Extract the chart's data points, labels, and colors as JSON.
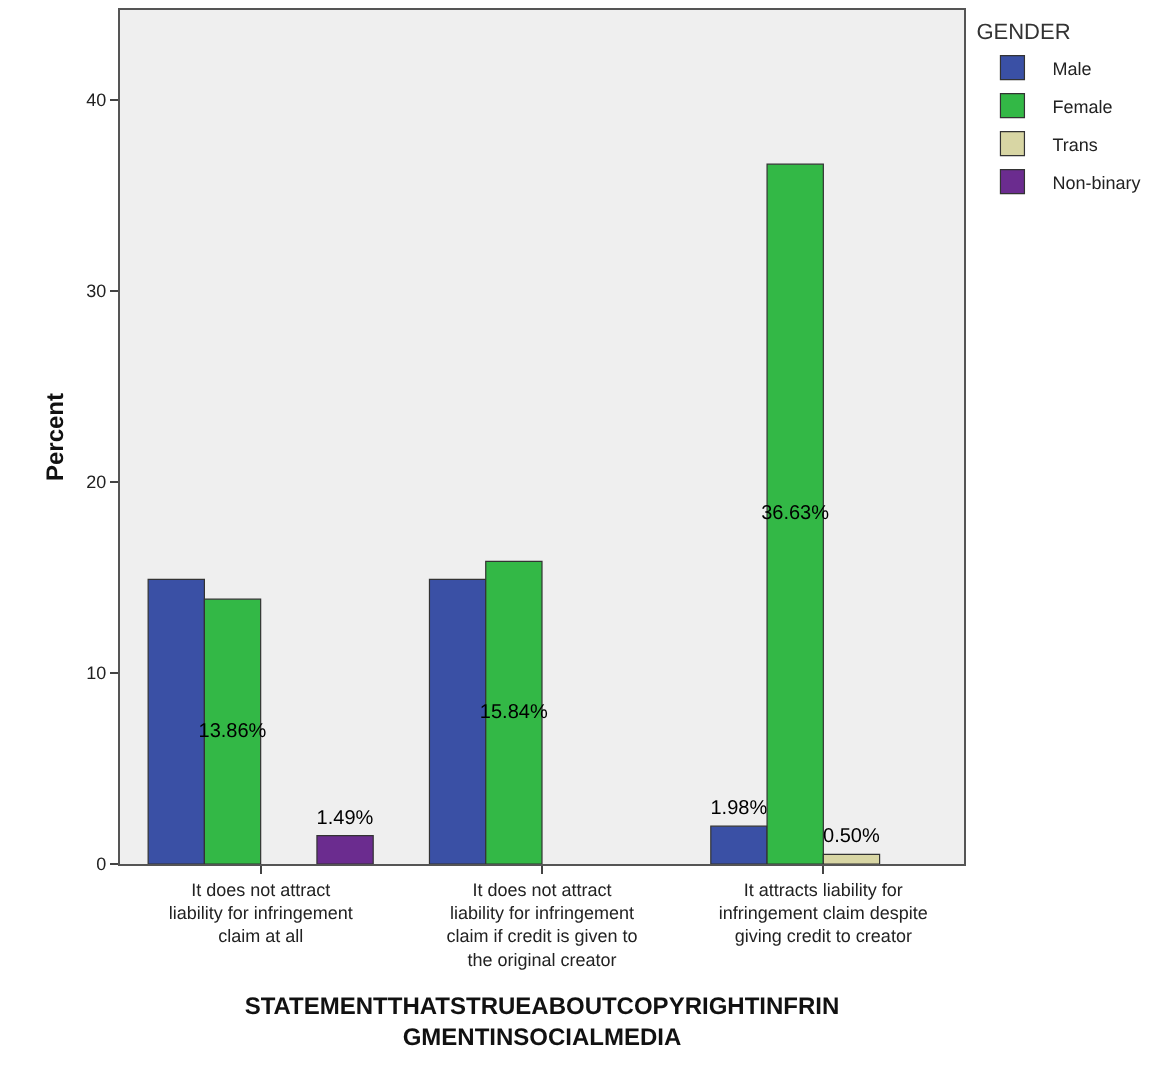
{
  "chart_data": {
    "type": "bar",
    "xlabel": "STATEMENTTHATSTRUEABOUTCOPYRIGHTINFRINGMENTINSOCIALMEDIA",
    "ylabel": "Percent",
    "legend_title": "GENDER",
    "categories": [
      "It does not attract liability for infringement claim at all",
      "It does not attract liability for infringement claim if credit is given to the original creator",
      "It attracts liability for infringement claim despite giving credit to creator"
    ],
    "series": [
      {
        "name": "Male",
        "color": "#3a50a5",
        "values": [
          14.9,
          14.9,
          1.98
        ],
        "value_labels": [
          null,
          null,
          "1.98%"
        ]
      },
      {
        "name": "Female",
        "color": "#33b846",
        "values": [
          13.86,
          15.84,
          36.63
        ],
        "value_labels": [
          "13.86%",
          "15.84%",
          "36.63%"
        ]
      },
      {
        "name": "Trans",
        "color": "#d8d6a4",
        "values": [
          null,
          null,
          0.5
        ],
        "value_labels": [
          null,
          null,
          "0.50%"
        ]
      },
      {
        "name": "Non-binary",
        "color": "#6b2c8f",
        "values": [
          1.49,
          null,
          null
        ],
        "value_labels": [
          "1.49%",
          null,
          null
        ]
      }
    ],
    "ylim": [
      0,
      44.7
    ],
    "yticks": [
      0,
      10,
      20,
      30,
      40
    ],
    "grid": false,
    "legend": "top right"
  }
}
